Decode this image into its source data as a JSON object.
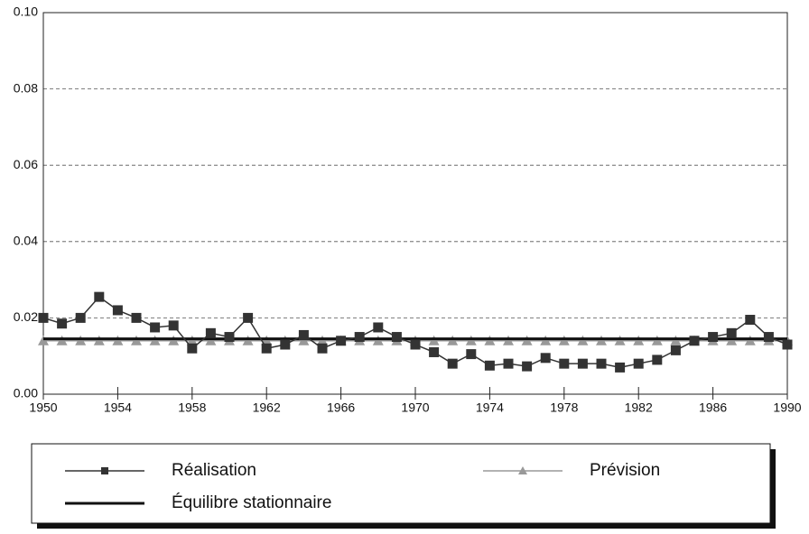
{
  "chart_data": {
    "type": "line",
    "x": [
      1950,
      1951,
      1952,
      1953,
      1954,
      1955,
      1956,
      1957,
      1958,
      1959,
      1960,
      1961,
      1962,
      1963,
      1964,
      1965,
      1966,
      1967,
      1968,
      1969,
      1970,
      1971,
      1972,
      1973,
      1974,
      1975,
      1976,
      1977,
      1978,
      1979,
      1980,
      1981,
      1982,
      1983,
      1984,
      1985,
      1986,
      1987,
      1988,
      1989,
      1990
    ],
    "series": [
      {
        "name": "Réalisation",
        "color": "#333333",
        "marker": "square",
        "values": [
          0.02,
          0.0185,
          0.02,
          0.0255,
          0.022,
          0.02,
          0.0175,
          0.018,
          0.012,
          0.016,
          0.015,
          0.02,
          0.012,
          0.013,
          0.0155,
          0.012,
          0.014,
          0.015,
          0.0175,
          0.015,
          0.013,
          0.011,
          0.008,
          0.0105,
          0.0075,
          0.008,
          0.0073,
          0.0095,
          0.008,
          0.008,
          0.008,
          0.007,
          0.008,
          0.009,
          0.0115,
          0.014,
          0.015,
          0.016,
          0.0195,
          0.015,
          0.013
        ]
      },
      {
        "name": "Prévision",
        "color": "#999999",
        "marker": "triangle",
        "values": [
          0.014,
          0.014,
          0.014,
          0.014,
          0.014,
          0.014,
          0.014,
          0.014,
          0.014,
          0.014,
          0.014,
          0.014,
          0.014,
          0.014,
          0.014,
          0.014,
          0.014,
          0.014,
          0.014,
          0.014,
          0.014,
          0.014,
          0.014,
          0.014,
          0.014,
          0.014,
          0.014,
          0.014,
          0.014,
          0.014,
          0.014,
          0.014,
          0.014,
          0.014,
          0.014,
          0.014,
          0.014,
          0.014,
          0.014,
          0.014,
          0.014
        ]
      },
      {
        "name": "Équilibre stationnaire",
        "color": "#111111",
        "marker": "none",
        "values": [
          0.0145,
          0.0145,
          0.0145,
          0.0145,
          0.0145,
          0.0145,
          0.0145,
          0.0145,
          0.0145,
          0.0145,
          0.0145,
          0.0145,
          0.0145,
          0.0145,
          0.0145,
          0.0145,
          0.0145,
          0.0145,
          0.0145,
          0.0145,
          0.0145,
          0.0145,
          0.0145,
          0.0145,
          0.0145,
          0.0145,
          0.0145,
          0.0145,
          0.0145,
          0.0145,
          0.0145,
          0.0145,
          0.0145,
          0.0145,
          0.0145,
          0.0145,
          0.0145,
          0.0145,
          0.0145,
          0.0145,
          0.0145
        ]
      }
    ],
    "xlim": [
      1950,
      1990
    ],
    "xticks": [
      1950,
      1954,
      1958,
      1962,
      1966,
      1970,
      1974,
      1978,
      1982,
      1986,
      1990
    ],
    "ylim": [
      0,
      0.1
    ],
    "yticks": [
      {
        "value": 0,
        "label": "0.00"
      },
      0.02,
      0.04,
      0.06,
      0.08,
      {
        "value": 0.1,
        "label": "0.10"
      }
    ],
    "grid": true
  }
}
